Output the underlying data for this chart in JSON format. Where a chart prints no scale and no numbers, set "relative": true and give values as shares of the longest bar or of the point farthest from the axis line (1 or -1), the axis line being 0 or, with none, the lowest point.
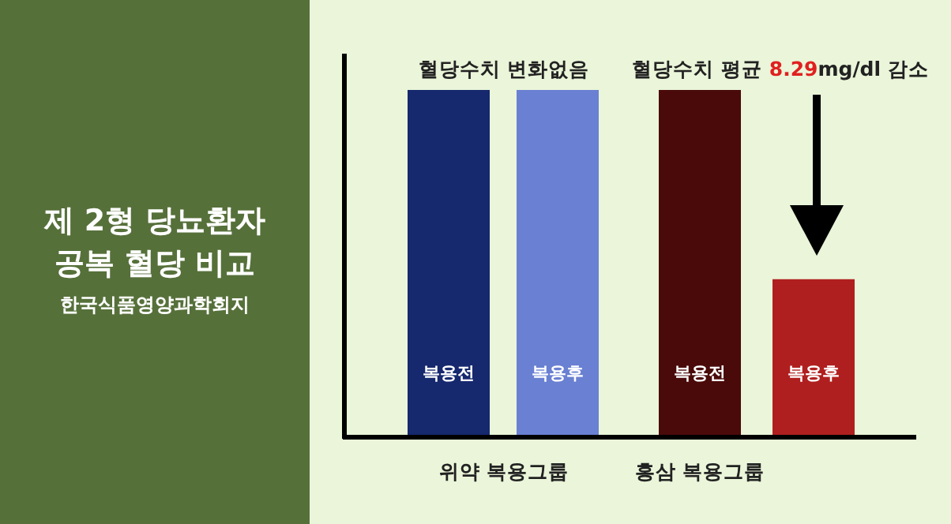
{
  "chart_data": {
    "type": "bar",
    "relative": true,
    "title": "제 2형 당뇨환자 공복 혈당 비교",
    "subtitle": "한국식품영양과학회지",
    "categories": [
      "복용전",
      "복용후",
      "복용전",
      "복용후"
    ],
    "values": [
      1,
      1,
      1,
      0.455
    ],
    "colors": [
      "#16286e",
      "#6a80d2",
      "#4a0a0a",
      "#b01f1f"
    ],
    "annotations": [
      "혈당수치 변화없음",
      "혈당수치 평균 8.29mg/dl 감소",
      "위약 복용그룹",
      "홍삼 복용그룹"
    ]
  }
}
